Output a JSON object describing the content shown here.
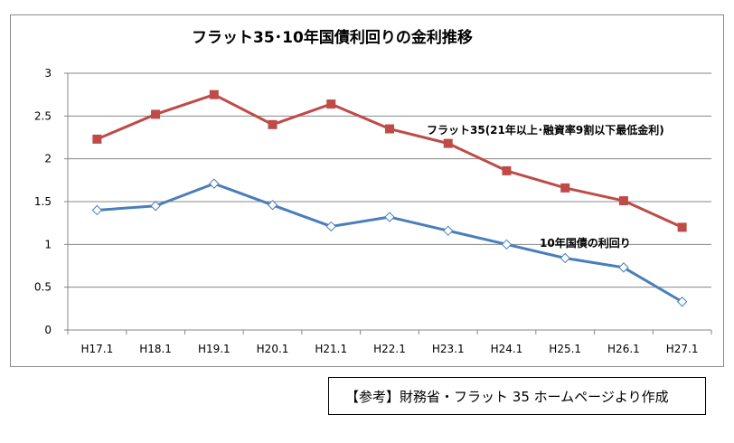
{
  "chart_data": {
    "type": "line",
    "title": "フラット35･10年国債利回りの金利推移",
    "categories": [
      "H17.1",
      "H18.1",
      "H19.1",
      "H20.1",
      "H21.1",
      "H22.1",
      "H23.1",
      "H24.1",
      "H25.1",
      "H26.1",
      "H27.1"
    ],
    "ylim": [
      0,
      3
    ],
    "yticks": [
      "0",
      "0.5",
      "1",
      "1.5",
      "2",
      "2.5",
      "3"
    ],
    "grid": "horizontal",
    "legend": "inline annotations",
    "series": [
      {
        "name": "フラット35(21年以上･融資率9割以下最低金利)",
        "color": "#be4b48",
        "marker": "square",
        "values": [
          2.23,
          2.52,
          2.75,
          2.4,
          2.64,
          2.35,
          2.18,
          1.86,
          1.66,
          1.51,
          1.2
        ]
      },
      {
        "name": "10年国債の利回り",
        "color": "#4a7ebb",
        "marker": "diamond",
        "values": [
          1.4,
          1.45,
          1.71,
          1.46,
          1.21,
          1.32,
          1.16,
          1.0,
          0.84,
          0.73,
          0.33
        ]
      }
    ]
  },
  "source_note": "【参考】財務省・フラット 35 ホームページより作成"
}
